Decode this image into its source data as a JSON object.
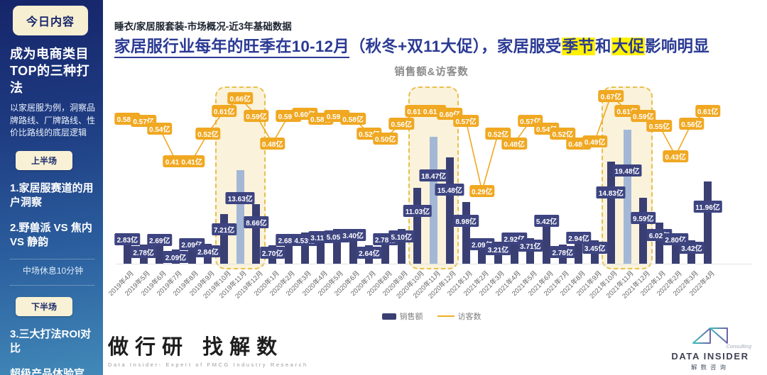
{
  "sidebar": {
    "badge": "今日内容",
    "heading_line1": "成为电商类目",
    "heading_line2": "TOP的三种打法",
    "description": "以家居服为例，洞察品牌路线、厂牌路线、性价比路线的底层逻辑",
    "session1_badge": "上半场",
    "session2_badge": "下半场",
    "break_text": "中场休息10分钟",
    "items": [
      "1.家居服赛道的用户洞察",
      "2.野兽派 VS 焦内 VS 静韵",
      "3.三大打法ROI对比",
      "超级产品体验官"
    ]
  },
  "header": {
    "breadcrumb": "睡衣/家居服套装-市场概况-近3年基础数据",
    "title_underlined": "家居服行业每年的旺季在10-12月",
    "title_mid": "（秋冬+双11大促），家居服受",
    "title_hl1": "季节",
    "title_and": "和",
    "title_hl2": "大促",
    "title_tail": "影响明显",
    "title_color": "#2B3A94",
    "highlight_color": "#FFF100"
  },
  "chart_data": {
    "type": "bar",
    "title": "销售额&访客数",
    "unit": "亿",
    "legend_position": "bottom",
    "grid": false,
    "categories": [
      "2019年4月",
      "2019年5月",
      "2019年6月",
      "2019年7月",
      "2019年8月",
      "2019年9月",
      "2019年10月",
      "2019年11月",
      "2019年12月",
      "2020年1月",
      "2020年2月",
      "2020年3月",
      "2020年4月",
      "2020年5月",
      "2020年6月",
      "2020年7月",
      "2020年8月",
      "2020年9月",
      "2020年10月",
      "2020年11月",
      "2020年12月",
      "2021年1月",
      "2021年2月",
      "2021年3月",
      "2021年4月",
      "2021年5月",
      "2021年6月",
      "2021年7月",
      "2021年8月",
      "2021年9月",
      "2021年10月",
      "2021年11月",
      "2021年12月",
      "2022年1月",
      "2022年2月",
      "2022年3月",
      "2022年4月"
    ],
    "series": [
      {
        "name": "销售额",
        "type": "bar",
        "unit": "亿",
        "color": "#3A3F73",
        "highlight_color": "#A4B8D6",
        "highlight_indices": [
          7,
          19,
          31
        ],
        "values": [
          2.83,
          2.78,
          2.69,
          2.09,
          2.09,
          2.84,
          7.21,
          13.63,
          8.66,
          2.7,
          2.68,
          4.53,
          3.11,
          5.05,
          3.4,
          2.64,
          2.78,
          5.1,
          11.03,
          18.47,
          15.48,
          8.98,
          2.09,
          3.21,
          2.92,
          3.71,
          5.42,
          2.78,
          2.94,
          3.45,
          14.83,
          19.48,
          9.59,
          6.02,
          2.8,
          3.42,
          11.96
        ]
      },
      {
        "name": "访客数",
        "type": "line",
        "unit": "亿",
        "color": "#F0A822",
        "values": [
          0.58,
          0.57,
          0.54,
          0.41,
          0.41,
          0.52,
          0.61,
          0.66,
          0.59,
          0.48,
          0.59,
          0.6,
          0.58,
          0.59,
          0.58,
          0.52,
          0.5,
          0.56,
          0.61,
          0.61,
          0.6,
          0.57,
          0.29,
          0.52,
          0.48,
          0.57,
          0.54,
          0.52,
          0.48,
          0.49,
          0.67,
          0.61,
          0.59,
          0.55,
          0.43,
          0.56,
          0.61
        ]
      }
    ],
    "highlight_zones": [
      {
        "start": 6,
        "end": 8
      },
      {
        "start": 18,
        "end": 20
      },
      {
        "start": 30,
        "end": 32
      }
    ],
    "zone_fill": "#FAF2DB",
    "zone_border": "#E6C04A"
  },
  "footer": {
    "left_logo_text": "做行研 找解数",
    "left_logo_subtitle": "Data Insider- Expert of FMCG Industry Research",
    "right_logo_consulting": "Consulting",
    "right_logo_name": "DATA INSIDER",
    "right_logo_cn": "解数咨询"
  }
}
